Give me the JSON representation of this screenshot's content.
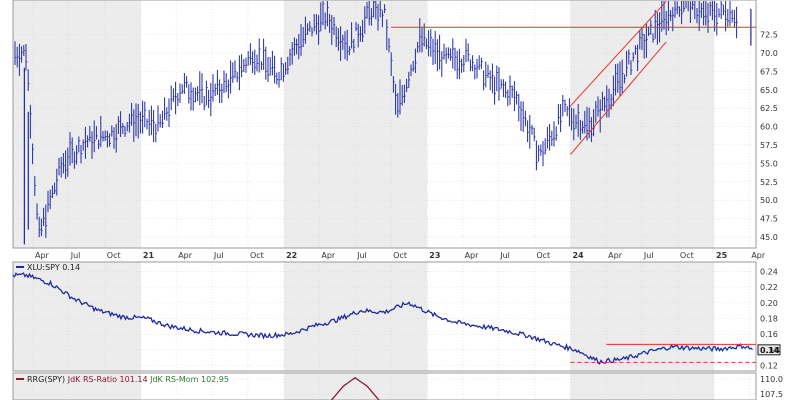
{
  "colors": {
    "price": "#1f2aa3",
    "ratio": "#1f2aa3",
    "trendline": "#e8322a",
    "rrg_ratio": "#8b1a2b",
    "rrg_mom": "#2e7d32",
    "band": "#ececec",
    "grid": "#d7d7d7",
    "badge_bg": "#e9e9e9"
  },
  "chart_data": [
    {
      "type": "line",
      "title": "",
      "y_ticks": [
        "72.5",
        "70.0",
        "67.5",
        "65.0",
        "62.5",
        "60.0",
        "57.5",
        "55.0",
        "52.5",
        "50.0",
        "47.5",
        "45.0"
      ],
      "ylim": [
        43.5,
        77.2
      ],
      "x_ticks": [
        "Apr",
        "Jul",
        "Oct",
        "21",
        "Apr",
        "Jul",
        "Oct",
        "22",
        "Apr",
        "Jul",
        "Oct",
        "23",
        "Apr",
        "Jul",
        "Oct",
        "24",
        "Apr",
        "Jul",
        "Oct",
        "25",
        "Apr"
      ],
      "x": [
        "2020-03",
        "2020-04",
        "2020-06",
        "2020-08",
        "2020-10",
        "2020-12",
        "2021-02",
        "2021-04",
        "2021-06",
        "2021-08",
        "2021-10",
        "2021-12",
        "2022-02",
        "2022-04",
        "2022-06",
        "2022-08",
        "2022-09",
        "2022-10",
        "2022-12",
        "2023-02",
        "2023-04",
        "2023-06",
        "2023-08",
        "2023-10",
        "2023-12",
        "2024-02",
        "2024-04",
        "2024-06",
        "2024-08",
        "2024-10",
        "2024-12",
        "2025-02",
        "2025-04"
      ],
      "values": [
        70,
        45,
        55,
        58,
        59,
        61,
        60,
        65.5,
        64,
        66,
        70,
        67,
        72,
        75,
        71,
        76,
        75,
        62,
        72,
        69,
        69.5,
        66,
        64,
        56,
        62,
        60,
        64.5,
        70,
        74,
        77,
        75,
        76,
        70.5
      ],
      "annotations": [
        {
          "kind": "horizontal-resistance",
          "y": 73.5,
          "from": "2022-10",
          "to": "2025-04"
        },
        {
          "kind": "rising-channel-upper",
          "from": [
            "2024-01",
            62.8
          ],
          "to": [
            "2024-09",
            77
          ]
        },
        {
          "kind": "rising-channel-lower",
          "from": [
            "2024-01",
            56.2
          ],
          "to": [
            "2024-09",
            71.5
          ]
        }
      ]
    },
    {
      "type": "line",
      "legend": "XLU:SPY 0.14",
      "y_ticks": [
        "0.24",
        "0.22",
        "0.20",
        "0.18",
        "0.16",
        "0.14",
        "0.12"
      ],
      "ylim": [
        0.113,
        0.252
      ],
      "current_value": "0.14",
      "x": [
        "2020-03",
        "2020-05",
        "2020-07",
        "2020-09",
        "2020-11",
        "2021-01",
        "2021-03",
        "2021-05",
        "2021-07",
        "2021-09",
        "2021-11",
        "2022-01",
        "2022-03",
        "2022-05",
        "2022-07",
        "2022-09",
        "2022-11",
        "2023-01",
        "2023-03",
        "2023-05",
        "2023-07",
        "2023-09",
        "2023-11",
        "2024-01",
        "2024-03",
        "2024-05",
        "2024-07",
        "2024-09",
        "2024-11",
        "2025-01",
        "2025-03",
        "2025-04"
      ],
      "values": [
        0.235,
        0.225,
        0.205,
        0.19,
        0.182,
        0.18,
        0.17,
        0.165,
        0.162,
        0.16,
        0.158,
        0.16,
        0.17,
        0.178,
        0.19,
        0.188,
        0.2,
        0.185,
        0.175,
        0.17,
        0.165,
        0.158,
        0.148,
        0.14,
        0.125,
        0.128,
        0.137,
        0.144,
        0.142,
        0.141,
        0.145,
        0.14
      ],
      "annotations": [
        {
          "kind": "horizontal-resistance",
          "y": 0.147,
          "from": "2024-04",
          "to": "2025-04"
        },
        {
          "kind": "horizontal-support-dashed",
          "y": 0.124,
          "from": "2024-01",
          "to": "2025-04"
        }
      ]
    },
    {
      "type": "line",
      "legend": {
        "name": "RRG(SPY)",
        "ratio": "JdK RS-Ratio 101.14",
        "mom": "JdK RS-Mom 102.95"
      },
      "y_ticks": [
        "110.0",
        "107.5"
      ],
      "ylim": [
        106.5,
        111.0
      ],
      "x": [
        "2022-05",
        "2022-06",
        "2022-07",
        "2022-08",
        "2022-09"
      ],
      "values": [
        106.4,
        108.8,
        110.2,
        108.8,
        106.4
      ]
    }
  ]
}
